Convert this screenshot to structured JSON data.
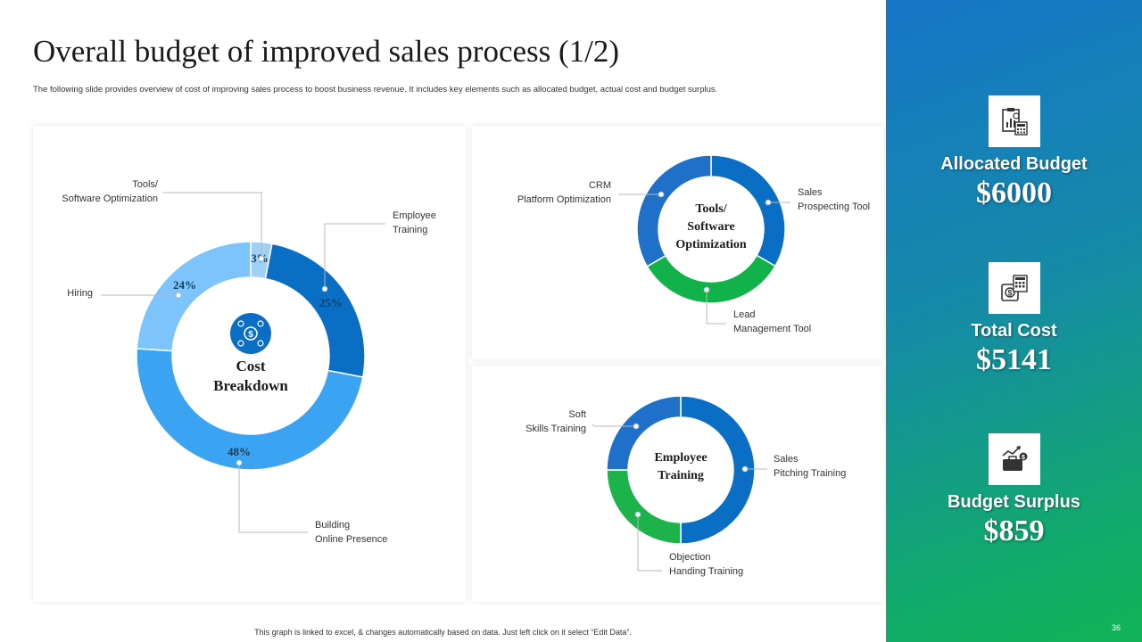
{
  "header": {
    "title": "Overall budget of improved sales process (1/2)",
    "subtitle": "The following slide provides overview of cost of improving sales process to boost business revenue. It includes key elements such as allocated budget, actual cost and budget surplus."
  },
  "chart_data": [
    {
      "type": "pie",
      "title": "Cost Breakdown",
      "title_lines": [
        "Cost",
        "Breakdown"
      ],
      "center_icon": "money-network-icon",
      "categories": [
        "Tools/ Software Optimization",
        "Employee Training",
        "Building Online Presence",
        "Hiring"
      ],
      "category_lines": [
        [
          "Tools/",
          "Software Optimization"
        ],
        [
          "Employee",
          "Training"
        ],
        [
          "Building",
          "Online Presence"
        ],
        [
          "Hiring"
        ]
      ],
      "values": [
        3,
        25,
        48,
        24
      ],
      "value_labels": [
        "3%",
        "25%",
        "48%",
        "24%"
      ],
      "colors": [
        "#9fd0f8",
        "#0a6ec4",
        "#3aa3f2",
        "#7cc4fb"
      ]
    },
    {
      "type": "pie",
      "title": "Tools/ Software Optimization",
      "title_lines": [
        "Tools/",
        "Software",
        "Optimization"
      ],
      "categories": [
        "Sales Prospecting Tool",
        "Lead Management Tool",
        "CRM Platform Optimization"
      ],
      "category_lines": [
        [
          "Sales",
          "Prospecting Tool"
        ],
        [
          "Lead",
          "Management Tool"
        ],
        [
          "CRM",
          "Platform Optimization"
        ]
      ],
      "values": [
        33.3,
        33.3,
        33.4
      ],
      "colors": [
        "#0a6ec4",
        "#12b24a",
        "#1f70c8"
      ]
    },
    {
      "type": "pie",
      "title": "Employee Training",
      "title_lines": [
        "Employee",
        "Training"
      ],
      "categories": [
        "Sales Pitching Training",
        "Objection Handing Training",
        "Soft Skills Training"
      ],
      "category_lines": [
        [
          "Sales",
          "Pitching Training"
        ],
        [
          "Objection",
          "Handing Training"
        ],
        [
          "Soft",
          "Skills Training"
        ]
      ],
      "values": [
        50,
        25,
        25
      ],
      "colors": [
        "#0a6ec4",
        "#1cb34b",
        "#1f70c8"
      ]
    }
  ],
  "metrics": [
    {
      "label": "Allocated Budget",
      "value": "$6000",
      "icon": "clipboard-calculator-icon"
    },
    {
      "label": "Total Cost",
      "value": "$5141",
      "icon": "money-calculator-icon"
    },
    {
      "label": "Budget Surplus",
      "value": "$859",
      "icon": "briefcase-growth-icon"
    }
  ],
  "footer": {
    "note": "This graph is linked to excel, & changes automatically based on data. Just left click on it select “Edit Data”.",
    "page_number": "36"
  },
  "colors": {
    "sidebar_top": "#1676c8",
    "sidebar_bottom": "#10b456",
    "leader_line": "#b8b8b8"
  }
}
